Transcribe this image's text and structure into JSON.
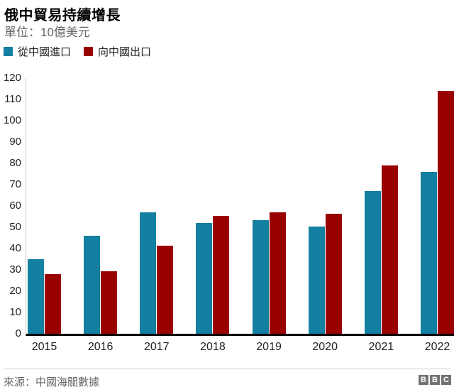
{
  "header": {
    "title": "俄中貿易持續增長",
    "subtitle": "單位：10億美元"
  },
  "legend": [
    {
      "key": "import",
      "label": "從中國進口",
      "color": "#1380A1"
    },
    {
      "key": "export",
      "label": "向中國出口",
      "color": "#990000"
    }
  ],
  "chart_data": {
    "type": "bar",
    "title": "俄中貿易持續增長",
    "unit_note": "單位：10億美元",
    "categories": [
      "2015",
      "2016",
      "2017",
      "2018",
      "2019",
      "2020",
      "2021",
      "2022"
    ],
    "series": [
      {
        "key": "import",
        "name": "從中國進口",
        "color": "#1380A1",
        "values": [
          35,
          46,
          57,
          52,
          53.5,
          50.5,
          67,
          76
        ]
      },
      {
        "key": "export",
        "name": "向中國出口",
        "color": "#990000",
        "values": [
          28,
          29.5,
          41.5,
          55.5,
          57,
          56.5,
          79,
          114
        ]
      }
    ],
    "ylim": [
      0,
      120
    ],
    "yticks": [
      0,
      10,
      20,
      30,
      40,
      50,
      60,
      70,
      80,
      90,
      100,
      110,
      120
    ],
    "grid": false,
    "legend_position": "top-left",
    "axis_colors": {
      "baseline": "#000000",
      "y_line": "#cccccc"
    }
  },
  "footer": {
    "source": "來源：中國海關數據",
    "logo_letters": [
      "B",
      "B",
      "C"
    ]
  }
}
